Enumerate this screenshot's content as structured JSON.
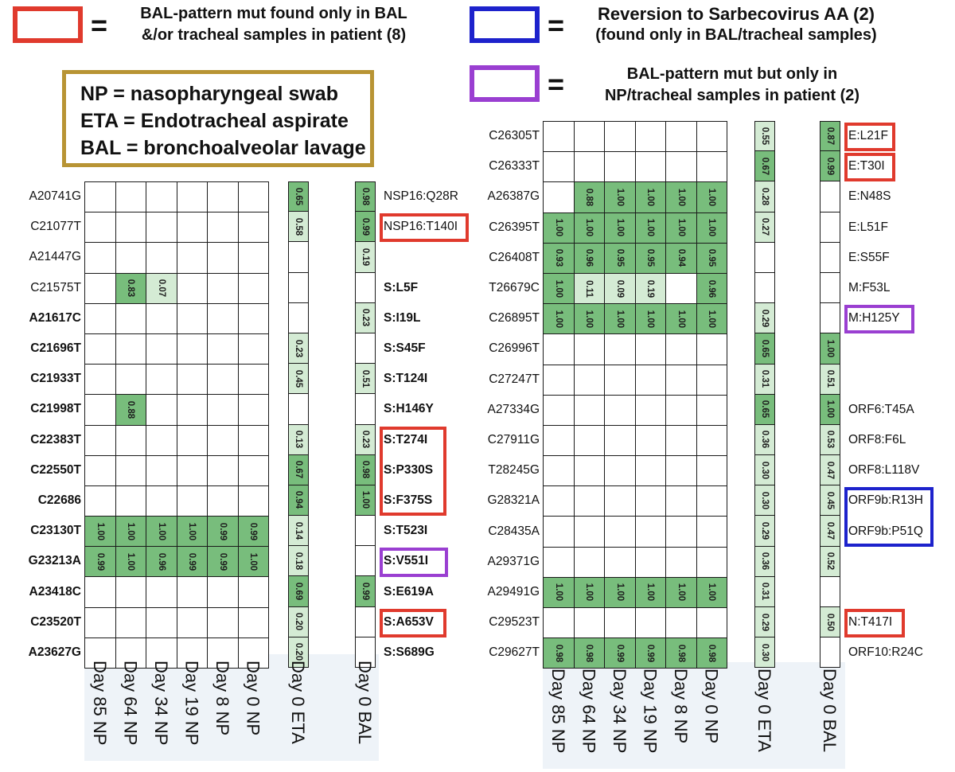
{
  "legend": {
    "red": {
      "color": "#e03a2d",
      "text_line1": "BAL-pattern mut found only in BAL",
      "text_line2": "&/or tracheal samples in patient (8)"
    },
    "blue": {
      "color": "#1d22cc",
      "text_line1": "Reversion to Sarbecovirus AA (2)",
      "text_line2": "(found only in BAL/tracheal samples)"
    },
    "purple": {
      "color": "#9a3fd1",
      "text_line1": "BAL-pattern mut but only in",
      "text_line2": "NP/tracheal samples in patient (2)"
    },
    "eq": "="
  },
  "definitions": [
    "NP = nasopharyngeal swab",
    "ETA = Endotracheal aspirate",
    "BAL = bronchoalveolar lavage"
  ],
  "columns": [
    "Day 85 NP",
    "Day 64 NP",
    "Day 34 NP",
    "Day 19 NP",
    "Day 8 NP",
    "Day 0 NP",
    "Day 0 ETA",
    "Day 0 BAL"
  ],
  "colors": {
    "strong": "#78bd7c",
    "light": "#d4ebd4",
    "grid": "#1a1a1a",
    "axis_bg": "#eef3f8",
    "defs_border": "#b89434"
  },
  "left_panel": [
    {
      "nt": "A20741G",
      "nt_bold": false,
      "np": [
        "",
        "",
        "",
        "",
        "",
        ""
      ],
      "eta": "0.65",
      "bal": "0.98",
      "aa": "NSP16:Q28R",
      "aa_bold": false
    },
    {
      "nt": "C21077T",
      "nt_bold": false,
      "np": [
        "",
        "",
        "",
        "",
        "",
        ""
      ],
      "eta": "0.58",
      "bal": "0.99",
      "aa": "NSP16:T140I",
      "aa_bold": false,
      "hl": "red"
    },
    {
      "nt": "A21447G",
      "nt_bold": false,
      "np": [
        "",
        "",
        "",
        "",
        "",
        ""
      ],
      "eta": "",
      "bal": "0.19",
      "aa": "",
      "aa_bold": false
    },
    {
      "nt": "C21575T",
      "nt_bold": false,
      "np": [
        "",
        "0.83",
        "0.07",
        "",
        "",
        ""
      ],
      "eta": "",
      "bal": "",
      "aa": "S:L5F",
      "aa_bold": true
    },
    {
      "nt": "A21617C",
      "nt_bold": true,
      "np": [
        "",
        "",
        "",
        "",
        "",
        ""
      ],
      "eta": "",
      "bal": "0.23",
      "aa": "S:I19L",
      "aa_bold": true
    },
    {
      "nt": "C21696T",
      "nt_bold": true,
      "np": [
        "",
        "",
        "",
        "",
        "",
        ""
      ],
      "eta": "0.23",
      "bal": "",
      "aa": "S:S45F",
      "aa_bold": true
    },
    {
      "nt": "C21933T",
      "nt_bold": true,
      "np": [
        "",
        "",
        "",
        "",
        "",
        ""
      ],
      "eta": "0.45",
      "bal": "0.51",
      "aa": "S:T124I",
      "aa_bold": true
    },
    {
      "nt": "C21998T",
      "nt_bold": true,
      "np": [
        "",
        "0.88",
        "",
        "",
        "",
        ""
      ],
      "eta": "",
      "bal": "",
      "aa": "S:H146Y",
      "aa_bold": true
    },
    {
      "nt": "C22383T",
      "nt_bold": true,
      "np": [
        "",
        "",
        "",
        "",
        "",
        ""
      ],
      "eta": "0.13",
      "bal": "0.23",
      "aa": "S:T274I",
      "aa_bold": true,
      "hl": "red-a"
    },
    {
      "nt": "C22550T",
      "nt_bold": true,
      "np": [
        "",
        "",
        "",
        "",
        "",
        ""
      ],
      "eta": "0.67",
      "bal": "0.98",
      "aa": "S:P330S",
      "aa_bold": true
    },
    {
      "nt": "C22686",
      "nt_bold": true,
      "np": [
        "",
        "",
        "",
        "",
        "",
        ""
      ],
      "eta": "0.94",
      "bal": "1.00",
      "aa": "S:F375S",
      "aa_bold": true
    },
    {
      "nt": "C23130T",
      "nt_bold": true,
      "np": [
        "1.00",
        "1.00",
        "1.00",
        "1.00",
        "0.99",
        "0.99"
      ],
      "eta": "0.14",
      "bal": "",
      "aa": "S:T523I",
      "aa_bold": true
    },
    {
      "nt": "G23213A",
      "nt_bold": true,
      "np": [
        "0.99",
        "1.00",
        "0.96",
        "0.99",
        "0.99",
        "1.00"
      ],
      "eta": "0.18",
      "bal": "",
      "aa": "S:V551I",
      "aa_bold": true,
      "hl": "purple"
    },
    {
      "nt": "A23418C",
      "nt_bold": true,
      "np": [
        "",
        "",
        "",
        "",
        "",
        ""
      ],
      "eta": "0.69",
      "bal": "0.99",
      "aa": "S:E619A",
      "aa_bold": true
    },
    {
      "nt": "C23520T",
      "nt_bold": true,
      "np": [
        "",
        "",
        "",
        "",
        "",
        ""
      ],
      "eta": "0.20",
      "bal": "",
      "aa": "S:A653V",
      "aa_bold": true,
      "hl": "red"
    },
    {
      "nt": "A23627G",
      "nt_bold": true,
      "np": [
        "",
        "",
        "",
        "",
        "",
        ""
      ],
      "eta": "0.20",
      "bal": "",
      "aa": "S:S689G",
      "aa_bold": true
    }
  ],
  "right_panel": [
    {
      "nt": "C26305T",
      "np": [
        "",
        "",
        "",
        "",
        "",
        ""
      ],
      "eta": "0.55",
      "bal": "0.87",
      "aa": "E:L21F",
      "hl": "red"
    },
    {
      "nt": "C26333T",
      "np": [
        "",
        "",
        "",
        "",
        "",
        ""
      ],
      "eta": "0.67",
      "bal": "0.99",
      "aa": "E:T30I",
      "hl": "red"
    },
    {
      "nt": "A26387G",
      "np": [
        "",
        "0.88",
        "1.00",
        "1.00",
        "1.00",
        "1.00"
      ],
      "eta": "0.28",
      "bal": "",
      "aa": "E:N48S"
    },
    {
      "nt": "C26395T",
      "np": [
        "1.00",
        "1.00",
        "1.00",
        "1.00",
        "1.00",
        "1.00"
      ],
      "eta": "0.27",
      "bal": "",
      "aa": "E:L51F"
    },
    {
      "nt": "C26408T",
      "np": [
        "0.93",
        "0.96",
        "0.95",
        "0.95",
        "0.94",
        "0.95"
      ],
      "eta": "",
      "bal": "",
      "aa": "E:S55F"
    },
    {
      "nt": "T26679C",
      "np": [
        "1.00",
        "0.11",
        "0.09",
        "0.19",
        "",
        "0.96"
      ],
      "eta": "",
      "bal": "",
      "aa": "M:F53L"
    },
    {
      "nt": "C26895T",
      "np": [
        "1.00",
        "1.00",
        "1.00",
        "1.00",
        "1.00",
        "1.00"
      ],
      "eta": "0.29",
      "bal": "",
      "aa": "M:H125Y",
      "hl": "purple"
    },
    {
      "nt": "C26996T",
      "np": [
        "",
        "",
        "",
        "",
        "",
        ""
      ],
      "eta": "0.65",
      "bal": "1.00",
      "aa": ""
    },
    {
      "nt": "C27247T",
      "np": [
        "",
        "",
        "",
        "",
        "",
        ""
      ],
      "eta": "0.31",
      "bal": "0.51",
      "aa": ""
    },
    {
      "nt": "A27334G",
      "np": [
        "",
        "",
        "",
        "",
        "",
        ""
      ],
      "eta": "0.65",
      "bal": "1.00",
      "aa": "ORF6:T45A"
    },
    {
      "nt": "C27911G",
      "np": [
        "",
        "",
        "",
        "",
        "",
        ""
      ],
      "eta": "0.36",
      "bal": "0.53",
      "aa": "ORF8:F6L"
    },
    {
      "nt": "T28245G",
      "np": [
        "",
        "",
        "",
        "",
        "",
        ""
      ],
      "eta": "0.30",
      "bal": "0.47",
      "aa": "ORF8:L118V"
    },
    {
      "nt": "G28321A",
      "np": [
        "",
        "",
        "",
        "",
        "",
        ""
      ],
      "eta": "0.30",
      "bal": "0.45",
      "aa": "ORF9b:R13H",
      "hl": "blue-a"
    },
    {
      "nt": "C28435A",
      "np": [
        "",
        "",
        "",
        "",
        "",
        ""
      ],
      "eta": "0.29",
      "bal": "0.47",
      "aa": "ORF9b:P51Q"
    },
    {
      "nt": "A29371G",
      "np": [
        "",
        "",
        "",
        "",
        "",
        ""
      ],
      "eta": "0.36",
      "bal": "0.52",
      "aa": ""
    },
    {
      "nt": "A29491G",
      "np": [
        "1.00",
        "1.00",
        "1.00",
        "1.00",
        "1.00",
        "1.00"
      ],
      "eta": "0.31",
      "bal": "",
      "aa": ""
    },
    {
      "nt": "C29523T",
      "np": [
        "",
        "",
        "",
        "",
        "",
        ""
      ],
      "eta": "0.29",
      "bal": "0.50",
      "aa": "N:T417I",
      "hl": "red"
    },
    {
      "nt": "C29627T",
      "np": [
        "0.98",
        "0.98",
        "0.99",
        "0.99",
        "0.98",
        "0.98"
      ],
      "eta": "0.30",
      "bal": "",
      "aa": "ORF10:R24C"
    }
  ]
}
